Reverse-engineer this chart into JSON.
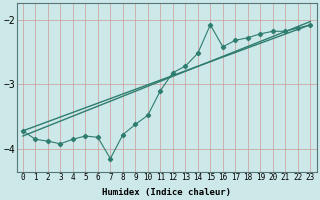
{
  "xlabel": "Humidex (Indice chaleur)",
  "bg_color": "#cce8e8",
  "grid_color": "#aacccc",
  "line_color": "#2e7d6e",
  "xlim": [
    -0.5,
    23.5
  ],
  "ylim": [
    -4.35,
    -1.75
  ],
  "yticks": [
    -4,
    -3,
    -2
  ],
  "xticks": [
    0,
    1,
    2,
    3,
    4,
    5,
    6,
    7,
    8,
    9,
    10,
    11,
    12,
    13,
    14,
    15,
    16,
    17,
    18,
    19,
    20,
    21,
    22,
    23
  ],
  "line1_x": [
    0,
    1,
    2,
    3,
    4,
    5,
    6,
    7,
    8,
    9,
    10,
    11,
    12,
    13,
    14,
    15,
    16,
    17,
    18,
    19,
    20,
    21,
    22,
    23
  ],
  "line1_y": [
    -3.72,
    -3.85,
    -3.88,
    -3.92,
    -3.85,
    -3.8,
    -3.82,
    -4.15,
    -3.78,
    -3.62,
    -3.48,
    -3.1,
    -2.82,
    -2.72,
    -2.52,
    -2.08,
    -2.42,
    -2.32,
    -2.28,
    -2.22,
    -2.18,
    -2.18,
    -2.13,
    -2.08
  ],
  "trend1_x": [
    0,
    23
  ],
  "trend1_y": [
    -3.72,
    -2.08
  ],
  "trend2_x": [
    0,
    23
  ],
  "trend2_y": [
    -3.8,
    -2.03
  ]
}
